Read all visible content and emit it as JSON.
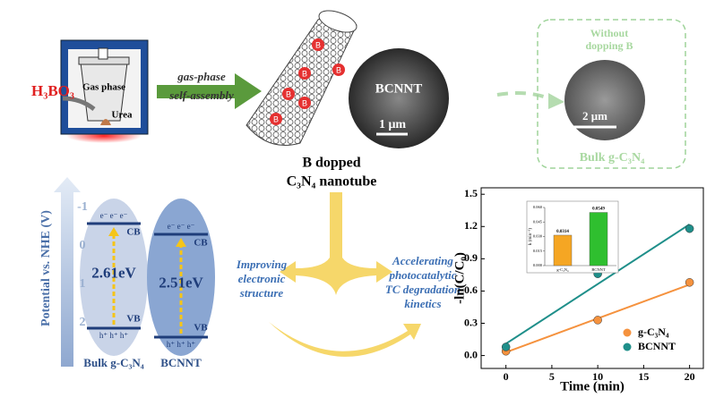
{
  "synthesis": {
    "reagent": "H₃BO₃",
    "gas_phase": "Gas phase",
    "urea": "Urea",
    "process": [
      "gas-phase",
      "self-assembly"
    ],
    "dopant_labels": [
      "B",
      "B",
      "B",
      "B",
      "B",
      "B"
    ],
    "sem": {
      "label": "BCNNT",
      "scale": "1 μm"
    },
    "product": [
      "B dopped",
      "C₃N₄ nanotube"
    ]
  },
  "control": {
    "title": [
      "Without",
      "dopping B"
    ],
    "scale": "2 μm",
    "label": "Bulk g-C₃N₄"
  },
  "band": {
    "axis_label": "Potential vs. NHE (V)",
    "ticks": [
      -1,
      0,
      1,
      2
    ],
    "materials": [
      {
        "name": "Bulk g-C₃N₄",
        "gap": "2.61eV",
        "cb": "CB",
        "vb": "VB",
        "electrons": "e⁻ e⁻ e⁻",
        "holes": "h⁺ h⁺ h⁺"
      },
      {
        "name": "BCNNT",
        "gap": "2.51eV",
        "cb": "CB",
        "vb": "VB",
        "electrons": "e⁻ e⁻ e⁻",
        "holes": "h⁺ h⁺ h⁺"
      }
    ]
  },
  "effects": [
    [
      "Improving",
      "electronic",
      "structure"
    ],
    [
      "Accelerating",
      "photocatalytic",
      "TC degradation",
      "kinetics"
    ]
  ],
  "chart_data": {
    "type": "scatter",
    "x_label": "Time (min)",
    "y_label": "-ln(C/C₀)",
    "xlim": [
      -2.7,
      21.5
    ],
    "ylim": [
      -0.12,
      1.56
    ],
    "xticks": [
      0,
      5,
      10,
      15,
      20
    ],
    "yticks": [
      {
        "value": 0,
        "label": "0.0"
      },
      0.3,
      0.6,
      0.9,
      1.2,
      1.5
    ],
    "fit_x": [
      0,
      20
    ],
    "series": [
      {
        "name": "g-C₃N₄",
        "color": "#f5923e",
        "x": [
          0,
          10,
          20
        ],
        "values": [
          0.04,
          0.33,
          0.68
        ],
        "fit": [
          0.03,
          0.66
        ]
      },
      {
        "name": "BCNNT",
        "color": "#1f8f8a",
        "x": [
          0,
          10,
          20
        ],
        "values": [
          0.08,
          0.76,
          1.18
        ],
        "fit": [
          0.11,
          1.22
        ]
      }
    ],
    "inset": {
      "type": "bar",
      "y_label": "k (min⁻¹)",
      "categories": [
        "g-C₃N₄",
        "BCNNT"
      ],
      "values": [
        0.0314,
        0.0549
      ],
      "colors": [
        "#f5a623",
        "#2fbf2f"
      ],
      "ylim": [
        0,
        0.06
      ],
      "yticks": [
        {
          "value": 0,
          "label": "0.000"
        },
        0.015,
        {
          "value": 0.03,
          "label": "0.030"
        },
        0.045,
        {
          "value": 0.06,
          "label": "0.060"
        }
      ]
    }
  }
}
